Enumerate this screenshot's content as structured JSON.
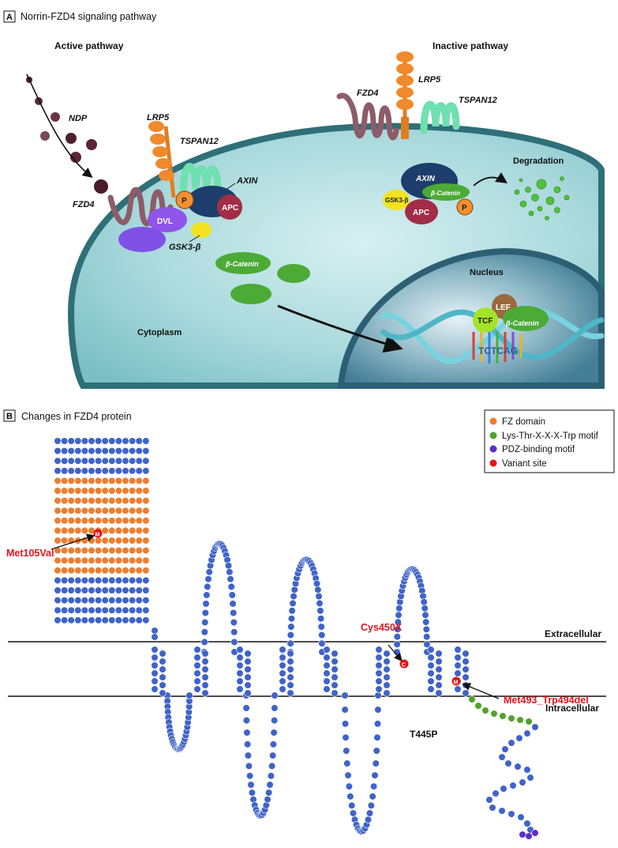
{
  "panel_a": {
    "letter": "A",
    "title": "Norrin-FZD4 signaling pathway",
    "active_header": "Active pathway",
    "inactive_header": "Inactive pathway",
    "labels": {
      "ndp": "NDP",
      "fzd4_active": "FZD4",
      "lrp5_active": "LRP5",
      "tspan12_active": "TSPAN12",
      "axin_active": "AXIN",
      "gsk3_active": "GSK3-β",
      "fzd4_inactive": "FZD4",
      "lrp5_inactive": "LRP5",
      "tspan12_inactive": "TSPAN12",
      "degradation": "Degradation",
      "nucleus": "Nucleus",
      "cytoplasm": "Cytoplasm"
    },
    "shape_labels": {
      "p_active": "P",
      "apc_active": "APC",
      "dvl": "DVL",
      "bcat_cyto": "β-Catenin",
      "axin_inactive": "AXIN",
      "bcat_inactive": "β-Catenin",
      "gsk3_inactive": "GSK3-β",
      "apc_inactive": "APC",
      "p_inactive": "P",
      "lef": "LEF",
      "tcf": "TCF",
      "bcat_nucleus": "β-Catenin",
      "dna_seq": "TCTCAG"
    }
  },
  "panel_b": {
    "letter": "B",
    "title": "Changes in FZD4 protein",
    "legend": [
      {
        "label": "FZ domain",
        "color": "#ee7d2f"
      },
      {
        "label": "Lys-Thr-X-X-X-Trp motif",
        "color": "#53a02c"
      },
      {
        "label": "PDZ-binding motif",
        "color": "#5b2ec8"
      },
      {
        "label": "Variant site",
        "color": "#e3141b"
      }
    ],
    "variants": {
      "met105": "Met105Val",
      "cys450": "Cys450X",
      "met493": "Met493_Trp494del",
      "t445": "T445P"
    },
    "membrane": {
      "extracellular": "Extracellular",
      "intracellular": "Intracellular"
    },
    "variant_residue_letters": {
      "met105": "M",
      "cys450": "C",
      "met493": "M"
    },
    "colors": {
      "residue": "#3f63c9",
      "fz_domain": "#ee7d2f",
      "motif": "#53a02c",
      "pdz": "#5b2ec8",
      "variant": "#e3141b"
    }
  }
}
